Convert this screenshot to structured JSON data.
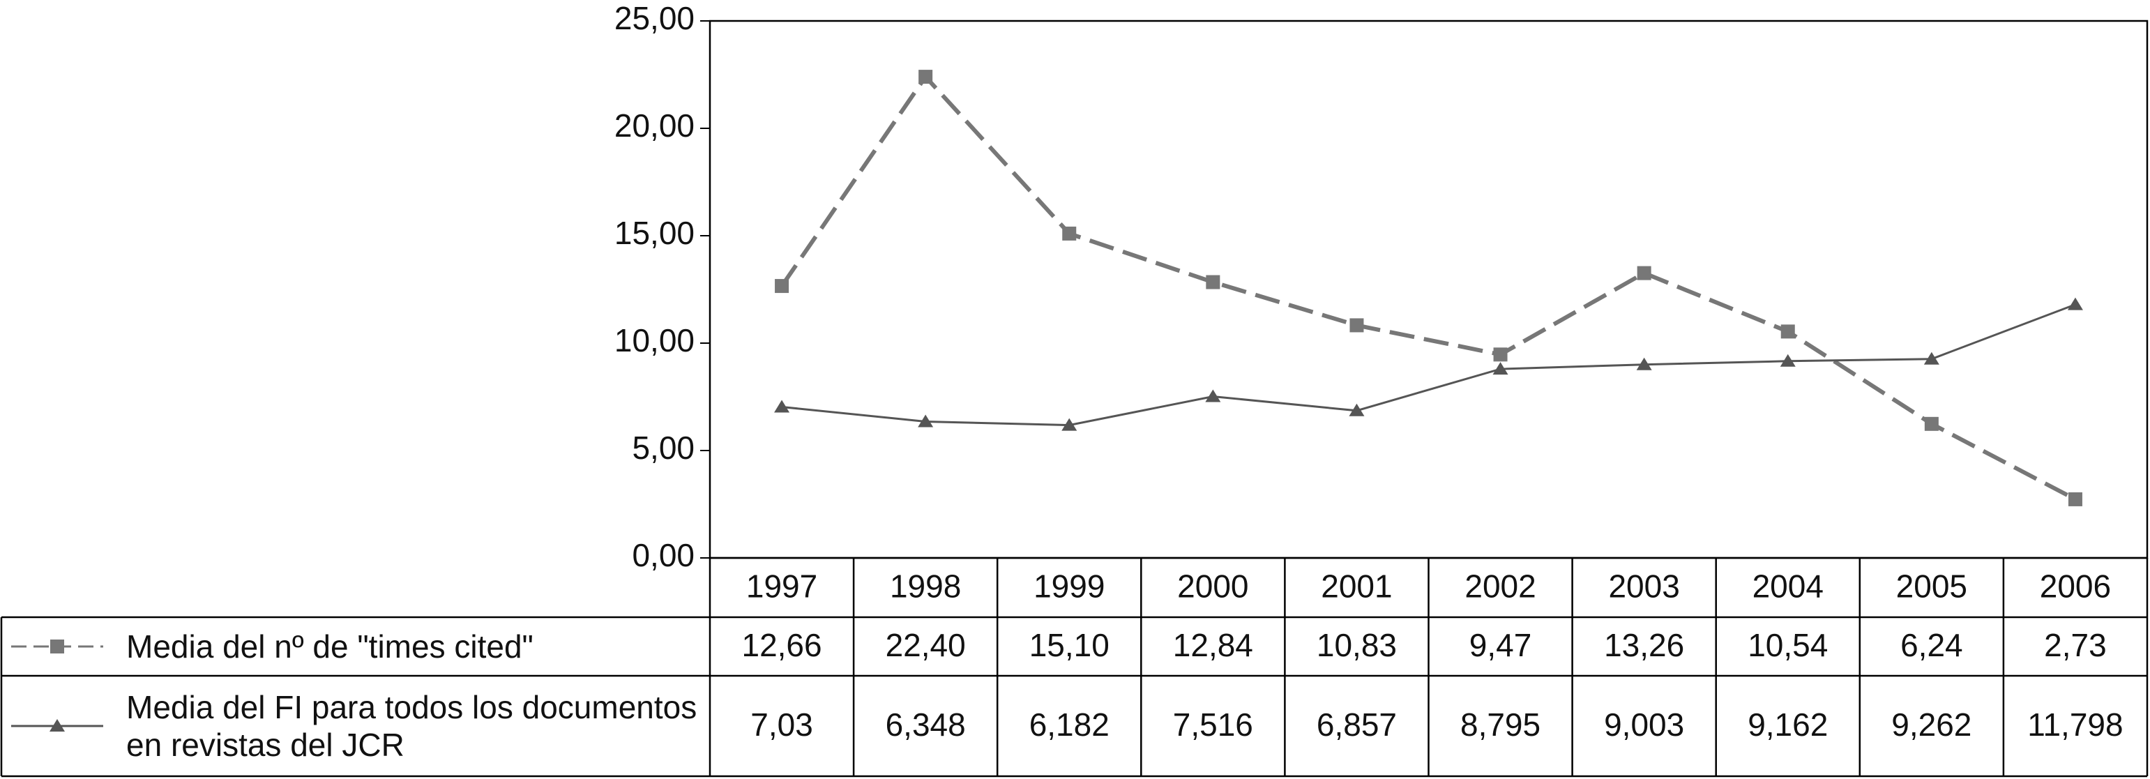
{
  "chart_data": {
    "type": "line",
    "categories": [
      "1997",
      "1998",
      "1999",
      "2000",
      "2001",
      "2002",
      "2003",
      "2004",
      "2005",
      "2006"
    ],
    "series": [
      {
        "name": "Media del nº de \"times cited\"",
        "color": "#777777",
        "dashed": true,
        "marker": "square",
        "values": [
          12.66,
          22.4,
          15.1,
          12.84,
          10.83,
          9.47,
          13.26,
          10.54,
          6.24,
          2.73
        ],
        "value_labels": [
          "12,66",
          "22,40",
          "15,10",
          "12,84",
          "10,83",
          "9,47",
          "13,26",
          "10,54",
          "6,24",
          "2,73"
        ]
      },
      {
        "name": "Media del FI para todos los documentos en revistas del JCR",
        "color": "#555555",
        "dashed": false,
        "marker": "triangle",
        "values": [
          7.03,
          6.348,
          6.182,
          7.516,
          6.857,
          8.795,
          9.003,
          9.162,
          9.262,
          11.798
        ],
        "value_labels": [
          "7,03",
          "6,348",
          "6,182",
          "7,516",
          "6,857",
          "8,795",
          "9,003",
          "9,162",
          "9,262",
          "11,798"
        ]
      }
    ],
    "ylim": [
      0,
      25
    ],
    "yticks": [
      {
        "value": 0,
        "label": "0,00"
      },
      {
        "value": 5,
        "label": "5,00"
      },
      {
        "value": 10,
        "label": "10,00"
      },
      {
        "value": 15,
        "label": "15,00"
      },
      {
        "value": 20,
        "label": "20,00"
      },
      {
        "value": 25,
        "label": "25,00"
      }
    ],
    "grid": false
  }
}
